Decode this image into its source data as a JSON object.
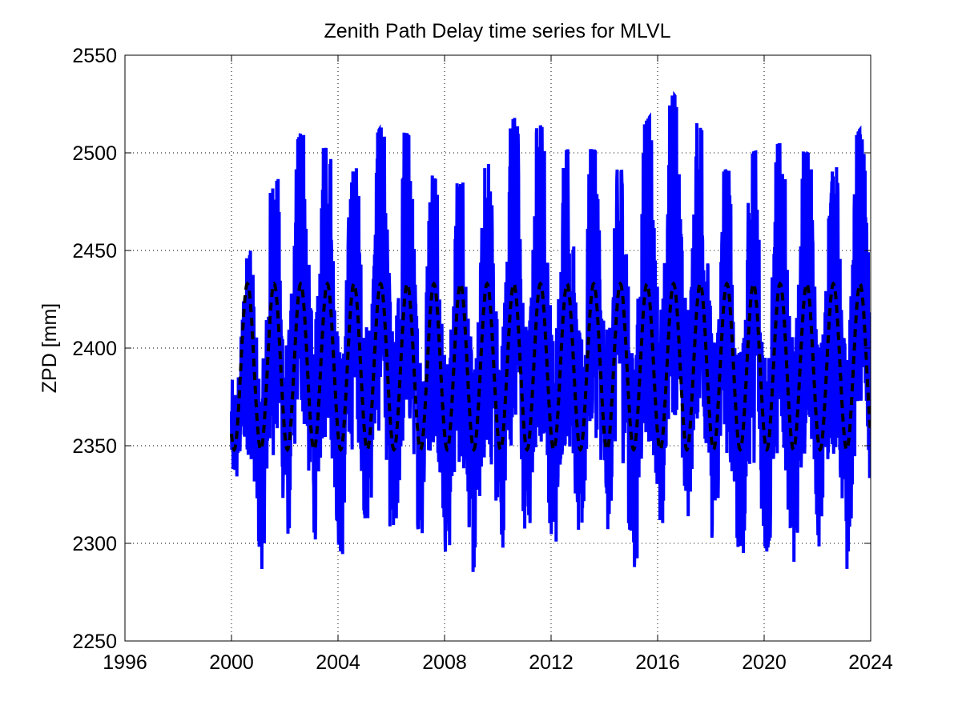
{
  "chart_data": {
    "type": "line",
    "title": "Zenith Path Delay time series for MLVL",
    "xlabel": "",
    "ylabel": "ZPD [mm]",
    "xlim": [
      1996,
      2024
    ],
    "ylim": [
      2250,
      2550
    ],
    "xticks": [
      1996,
      2000,
      2004,
      2008,
      2012,
      2016,
      2020,
      2024
    ],
    "yticks": [
      2250,
      2300,
      2350,
      2400,
      2450,
      2500,
      2550
    ],
    "xtick_labels": [
      "1996",
      "2000",
      "2004",
      "2008",
      "2012",
      "2016",
      "2020",
      "2024"
    ],
    "ytick_labels": [
      "2250",
      "2300",
      "2350",
      "2400",
      "2450",
      "2500",
      "2550"
    ],
    "grid": true,
    "legend": "none",
    "series": [
      {
        "role": "observed ZPD",
        "color": "#0000ff",
        "style": "solid",
        "x_start": 2000.0,
        "x_end": 2024.0,
        "annual_peaks": [
          [
            2000.3,
            2426
          ],
          [
            2000.8,
            2463
          ],
          [
            2001.6,
            2483
          ],
          [
            2002.6,
            2510
          ],
          [
            2003.6,
            2502
          ],
          [
            2004.6,
            2490
          ],
          [
            2005.6,
            2513
          ],
          [
            2006.6,
            2510
          ],
          [
            2007.6,
            2487
          ],
          [
            2008.6,
            2484
          ],
          [
            2009.6,
            2493
          ],
          [
            2010.6,
            2518
          ],
          [
            2011.6,
            2514
          ],
          [
            2012.6,
            2501
          ],
          [
            2013.6,
            2502
          ],
          [
            2014.6,
            2490
          ],
          [
            2015.6,
            2517
          ],
          [
            2016.6,
            2530
          ],
          [
            2017.6,
            2513
          ],
          [
            2018.6,
            2490
          ],
          [
            2019.6,
            2500
          ],
          [
            2020.6,
            2505
          ],
          [
            2021.6,
            2500
          ],
          [
            2022.6,
            2490
          ],
          [
            2023.6,
            2512
          ]
        ],
        "annual_troughs": [
          [
            2000.1,
            2328
          ],
          [
            2001.1,
            2284
          ],
          [
            2002.1,
            2300
          ],
          [
            2003.1,
            2300
          ],
          [
            2004.1,
            2285
          ],
          [
            2005.1,
            2305
          ],
          [
            2006.1,
            2283
          ],
          [
            2007.1,
            2300
          ],
          [
            2008.1,
            2288
          ],
          [
            2009.1,
            2278
          ],
          [
            2010.1,
            2290
          ],
          [
            2011.1,
            2289
          ],
          [
            2012.1,
            2289
          ],
          [
            2013.1,
            2293
          ],
          [
            2014.1,
            2305
          ],
          [
            2015.1,
            2272
          ],
          [
            2016.1,
            2299
          ],
          [
            2017.1,
            2308
          ],
          [
            2018.1,
            2297
          ],
          [
            2019.1,
            2278
          ],
          [
            2020.1,
            2283
          ],
          [
            2021.1,
            2283
          ],
          [
            2022.1,
            2296
          ],
          [
            2023.1,
            2281
          ],
          [
            2023.9,
            2309
          ]
        ]
      },
      {
        "role": "seasonal model",
        "color": "#000000",
        "style": "dashed",
        "x_start": 2000.0,
        "x_end": 2024.0,
        "annual_max": 2433,
        "annual_min": 2348,
        "peak_phase_year_fraction": 0.6
      }
    ]
  }
}
